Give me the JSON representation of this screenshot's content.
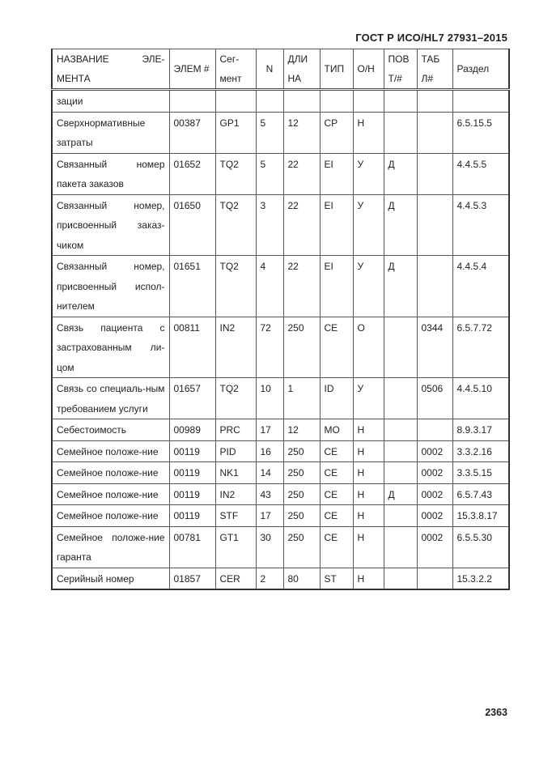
{
  "header": {
    "doc_title": "ГОСТ Р ИСО/HL7 27931–2015"
  },
  "table": {
    "columns": [
      "НАЗВАНИЕ ЭЛЕ-МЕНТА",
      "ЭЛЕМ #",
      "Сег-мент",
      "N",
      "ДЛИ НА",
      "ТИП",
      "О/Н",
      "ПОВ Т/#",
      "ТАБ Л#",
      "Раздел"
    ],
    "rows": [
      [
        "зации",
        "",
        "",
        "",
        "",
        "",
        "",
        "",
        "",
        ""
      ],
      [
        "Сверхнормативные затраты",
        "00387",
        "GP1",
        "5",
        "12",
        "CP",
        "Н",
        "",
        "",
        "6.5.15.5"
      ],
      [
        "Связанный номер пакета заказов",
        "01652",
        "TQ2",
        "5",
        "22",
        "EI",
        "У",
        "Д",
        "",
        "4.4.5.5"
      ],
      [
        "Связанный номер, присвоенный заказ-чиком",
        "01650",
        "TQ2",
        "3",
        "22",
        "EI",
        "У",
        "Д",
        "",
        "4.4.5.3"
      ],
      [
        "Связанный номер, присвоенный испол-нителем",
        "01651",
        "TQ2",
        "4",
        "22",
        "EI",
        "У",
        "Д",
        "",
        "4.4.5.4"
      ],
      [
        "Связь пациента с застрахованным ли-цом",
        "00811",
        "IN2",
        "72",
        "250",
        "CE",
        "О",
        "",
        "0344",
        "6.5.7.72"
      ],
      [
        "Связь со специаль-ным требованием услуги",
        "01657",
        "TQ2",
        "10",
        "1",
        "ID",
        "У",
        "",
        "0506",
        "4.4.5.10"
      ],
      [
        "Себестоимость",
        "00989",
        "PRC",
        "17",
        "12",
        "MO",
        "Н",
        "",
        "",
        "8.9.3.17"
      ],
      [
        "Семейное положе-ние",
        "00119",
        "PID",
        "16",
        "250",
        "CE",
        "Н",
        "",
        "0002",
        "3.3.2.16"
      ],
      [
        "Семейное положе-ние",
        "00119",
        "NK1",
        "14",
        "250",
        "CE",
        "Н",
        "",
        "0002",
        "3.3.5.15"
      ],
      [
        "Семейное положе-ние",
        "00119",
        "IN2",
        "43",
        "250",
        "CE",
        "Н",
        "Д",
        "0002",
        "6.5.7.43"
      ],
      [
        "Семейное положе-ние",
        "00119",
        "STF",
        "17",
        "250",
        "CE",
        "Н",
        "",
        "0002",
        "15.3.8.17"
      ],
      [
        "Семейное положе-ние гаранта",
        "00781",
        "GT1",
        "30",
        "250",
        "CE",
        "Н",
        "",
        "0002",
        "6.5.5.30"
      ],
      [
        "Серийный номер",
        "01857",
        "CER",
        "2",
        "80",
        "ST",
        "Н",
        "",
        "",
        "15.3.2.2"
      ]
    ]
  },
  "footer": {
    "page_number": "2363"
  }
}
